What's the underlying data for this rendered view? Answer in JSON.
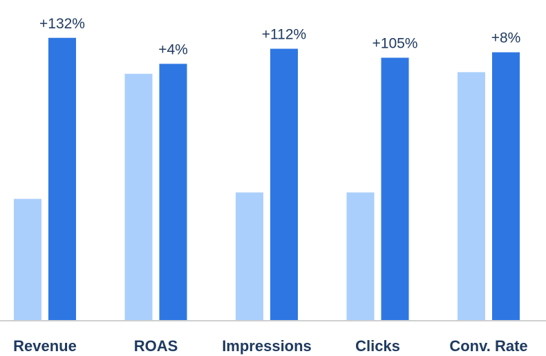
{
  "chart_data": {
    "type": "bar",
    "title": "",
    "xlabel": "",
    "ylabel": "",
    "categories": [
      "Revenue",
      "ROAS",
      "Impressions",
      "Clicks",
      "Conv. Rate"
    ],
    "series": [
      {
        "values": [
          38,
          77,
          40,
          40,
          77.5
        ]
      },
      {
        "values": [
          88.2,
          80.1,
          84.8,
          82.0,
          83.7
        ]
      }
    ],
    "annotations": [
      "+132%",
      "+4%",
      "+112%",
      "+105%",
      "+8%"
    ],
    "ylim": [
      0,
      100
    ],
    "grid": false,
    "legend": "none",
    "colors": {
      "before": "#aacffc",
      "after": "#2e77e3",
      "axis": "#cfcfcf",
      "text": "#1f3a60"
    }
  }
}
